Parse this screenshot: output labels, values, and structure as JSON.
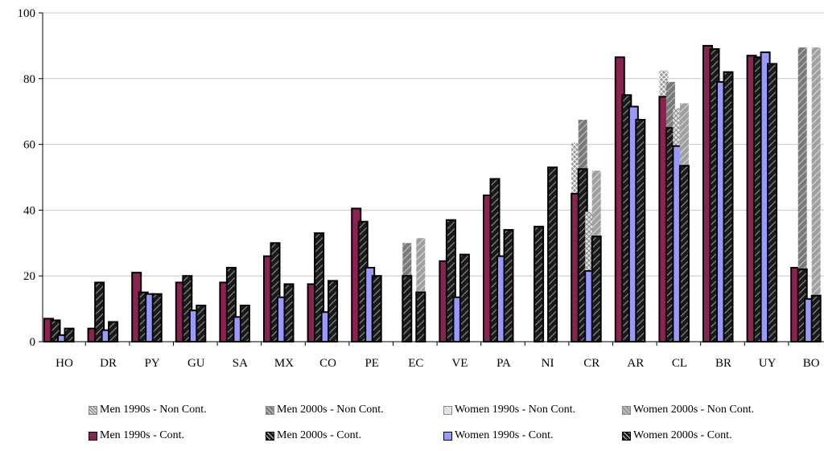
{
  "chart_data": {
    "type": "bar",
    "title": "",
    "xlabel": "",
    "ylabel": "",
    "ylim": [
      0,
      100
    ],
    "yticks": [
      "0",
      "20",
      "40",
      "60",
      "80",
      "100"
    ],
    "grid": true,
    "legend_position": "bottom",
    "categories": [
      "HO",
      "DR",
      "PY",
      "GU",
      "SA",
      "MX",
      "CO",
      "PE",
      "EC",
      "VE",
      "PA",
      "NI",
      "CR",
      "AR",
      "CL",
      "BR",
      "UY",
      "BO"
    ],
    "series": [
      {
        "name": "Men 1990s - Non Cont.",
        "color": "#9a9a9a",
        "pattern": "cross",
        "values": [
          null,
          null,
          null,
          null,
          null,
          null,
          null,
          null,
          null,
          null,
          null,
          null,
          60.5,
          null,
          82.5,
          null,
          null,
          null
        ]
      },
      {
        "name": "Men 2000s - Non Cont.",
        "color": "#808080",
        "pattern": "hatch",
        "values": [
          null,
          null,
          null,
          null,
          null,
          null,
          null,
          null,
          30,
          null,
          null,
          null,
          67.5,
          null,
          79,
          null,
          null,
          89.5
        ]
      },
      {
        "name": "Women 1990s - Non Cont.",
        "color": "#d8d8d8",
        "pattern": "cross",
        "values": [
          null,
          null,
          null,
          null,
          null,
          null,
          null,
          null,
          null,
          null,
          null,
          null,
          39.5,
          null,
          71,
          null,
          null,
          null
        ]
      },
      {
        "name": "Women 2000s - Non Cont.",
        "color": "#a0a0a0",
        "pattern": "hatch",
        "values": [
          null,
          null,
          null,
          null,
          null,
          null,
          null,
          null,
          31.5,
          null,
          null,
          null,
          52,
          null,
          72.5,
          null,
          null,
          89.5
        ]
      },
      {
        "name": "Men 1990s - Cont.",
        "color": "#8b2252",
        "pattern": "solid",
        "values": [
          7,
          4,
          21,
          18,
          18,
          26,
          17.5,
          40.5,
          null,
          24.5,
          44.5,
          null,
          45,
          86.5,
          74.5,
          90,
          87,
          22.5
        ]
      },
      {
        "name": "Men 2000s - Cont.",
        "color": "#1a1a1a",
        "pattern": "hatch",
        "values": [
          6.5,
          18,
          15,
          20,
          22.5,
          30,
          33,
          36.5,
          20,
          37,
          49.5,
          35,
          52.5,
          75,
          65,
          89,
          86.5,
          22
        ]
      },
      {
        "name": "Women 1990s - Cont.",
        "color": "#9999ff",
        "pattern": "solid",
        "values": [
          2,
          3.5,
          14.5,
          9.5,
          7.5,
          13.5,
          9,
          22.5,
          null,
          13.5,
          26,
          null,
          21.5,
          71.5,
          59.5,
          79,
          88,
          13
        ]
      },
      {
        "name": "Women 2000s - Cont.",
        "color": "#1a1a1a",
        "pattern": "hatch",
        "values": [
          4,
          6,
          14.5,
          11,
          11,
          17.5,
          18.5,
          20,
          15,
          26.5,
          34,
          53,
          32,
          67.5,
          53.5,
          82,
          84.5,
          14
        ]
      }
    ],
    "layers": [
      [
        "Men 1990s - Non Cont.",
        "Men 1990s - Cont."
      ],
      [
        "Men 2000s - Non Cont.",
        "Men 2000s - Cont."
      ],
      [
        "Women 1990s - Non Cont.",
        "Women 1990s - Cont."
      ],
      [
        "Women 2000s - Non Cont.",
        "Women 2000s - Cont."
      ]
    ],
    "legend": [
      "Men 1990s - Non Cont.",
      "Men 2000s - Non Cont.",
      "Women 1990s - Non Cont.",
      "Women 2000s - Non Cont.",
      "Men 1990s - Cont.",
      "Men 2000s - Cont.",
      "Women 1990s - Cont.",
      "Women 2000s - Cont."
    ]
  }
}
